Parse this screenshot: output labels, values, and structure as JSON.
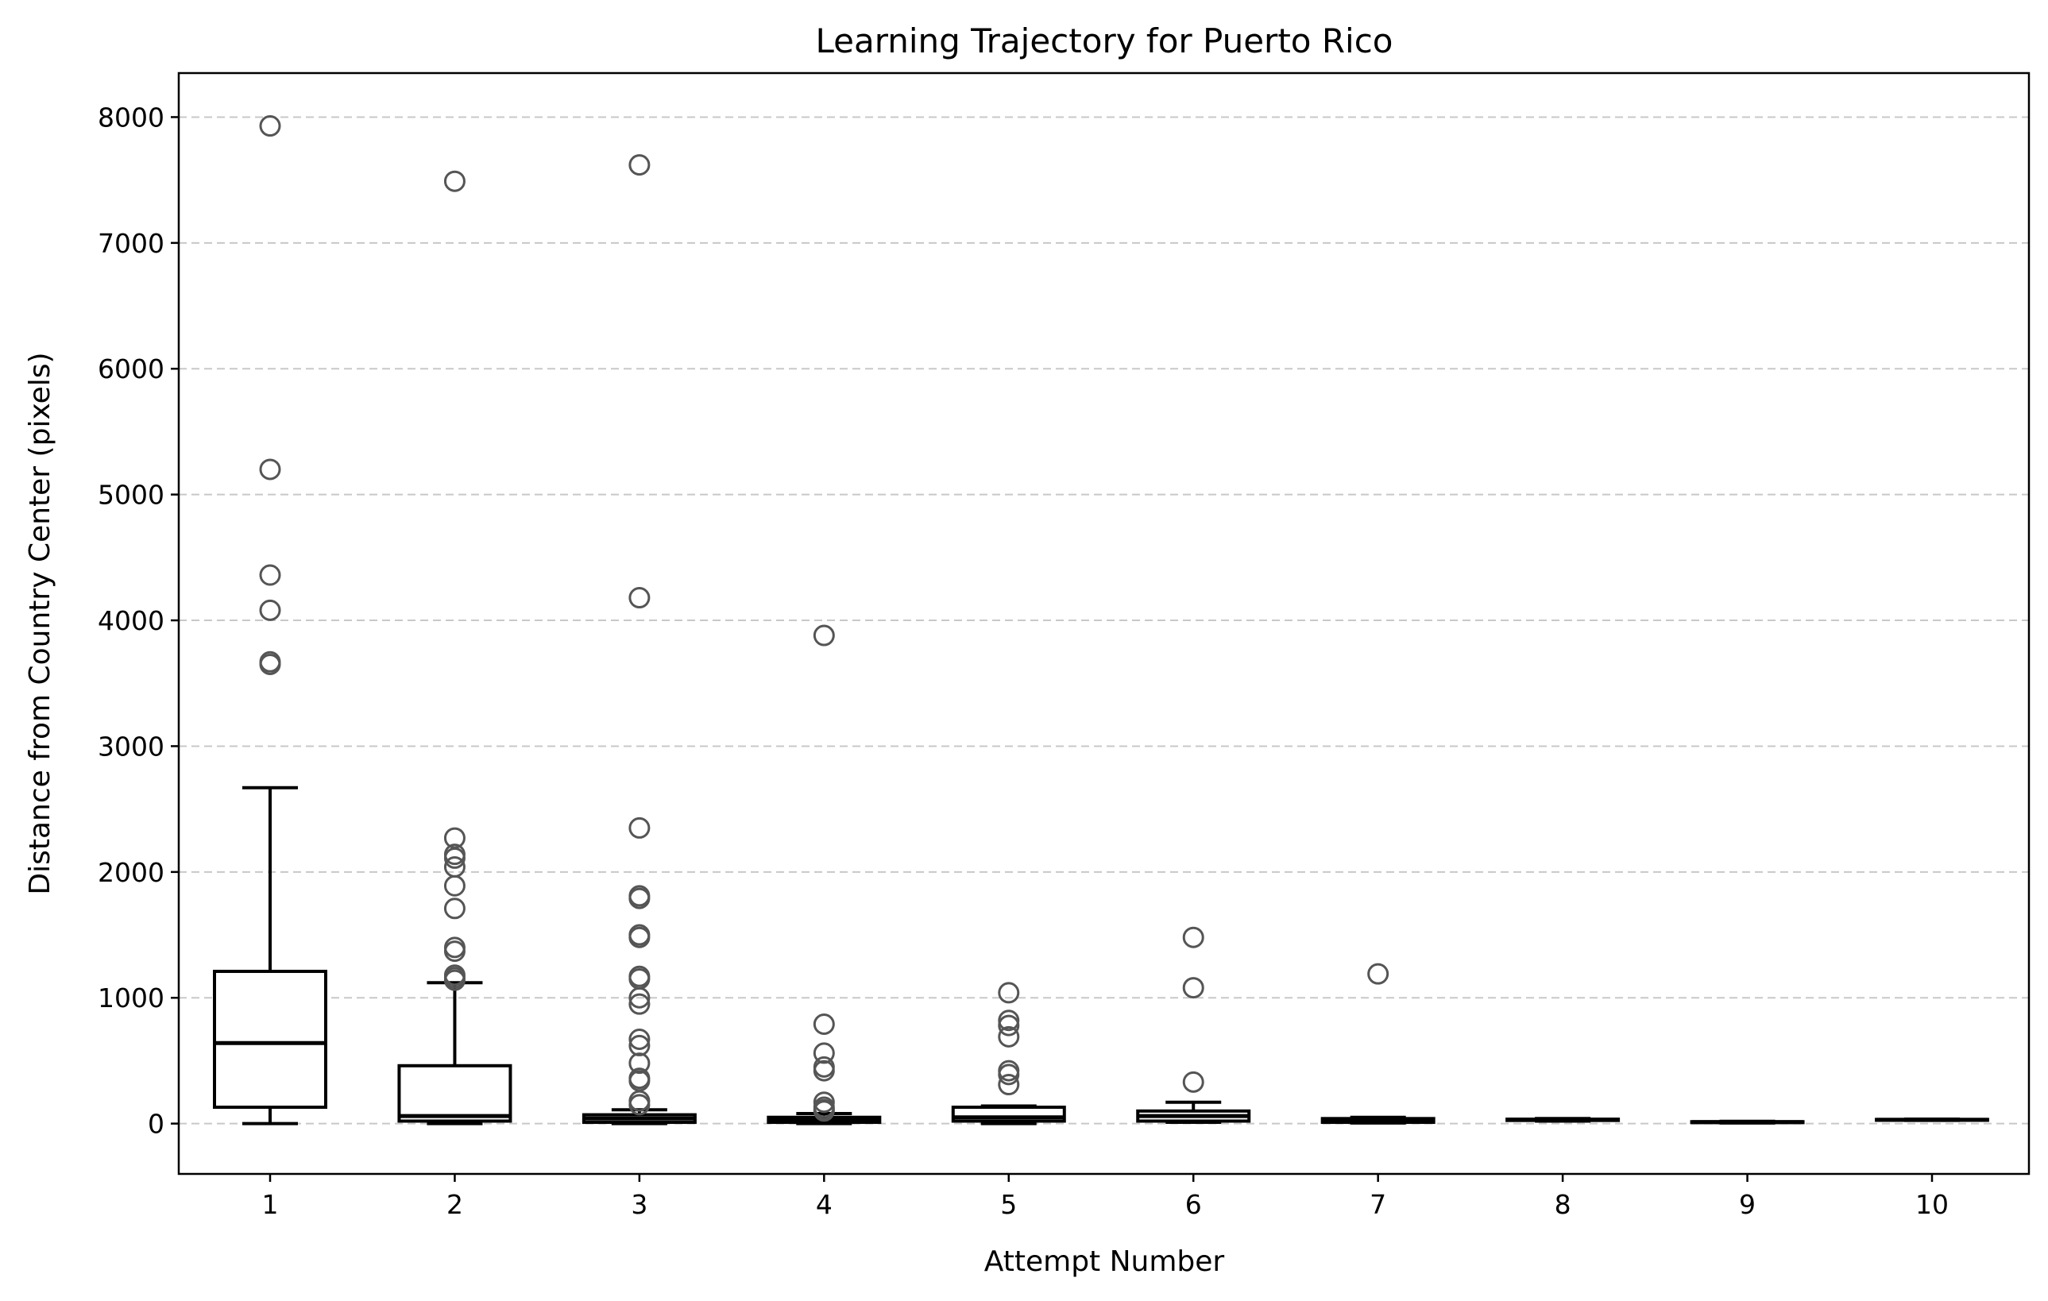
{
  "chart_data": {
    "type": "boxplot",
    "title": "Learning Trajectory for Puerto Rico",
    "xlabel": "Attempt Number",
    "ylabel": "Distance from Country Center (pixels)",
    "ylim": [
      -400,
      8350
    ],
    "yticks": [
      0,
      1000,
      2000,
      3000,
      4000,
      5000,
      6000,
      7000,
      8000
    ],
    "grid": "y-dashed",
    "categories": [
      "1",
      "2",
      "3",
      "4",
      "5",
      "6",
      "7",
      "8",
      "9",
      "10"
    ],
    "boxes": [
      {
        "category": "1",
        "whisker_low": 0,
        "q1": 130,
        "median": 640,
        "q3": 1210,
        "whisker_high": 2670,
        "fliers": [
          7930,
          5200,
          4360,
          4080,
          3670,
          3650
        ]
      },
      {
        "category": "2",
        "whisker_low": 0,
        "q1": 20,
        "median": 60,
        "q3": 460,
        "whisker_high": 1120,
        "fliers": [
          7490,
          2270,
          2140,
          2110,
          2040,
          1890,
          1710,
          1400,
          1370,
          1180,
          1160,
          1140
        ]
      },
      {
        "category": "3",
        "whisker_low": 0,
        "q1": 10,
        "median": 40,
        "q3": 70,
        "whisker_high": 110,
        "fliers": [
          7620,
          4180,
          2350,
          1810,
          1790,
          1500,
          1480,
          1170,
          1150,
          1000,
          950,
          670,
          620,
          480,
          360,
          340,
          180,
          150
        ]
      },
      {
        "category": "4",
        "whisker_low": 0,
        "q1": 10,
        "median": 30,
        "q3": 50,
        "whisker_high": 80,
        "fliers": [
          3880,
          790,
          560,
          450,
          420,
          170,
          130,
          110,
          100
        ]
      },
      {
        "category": "5",
        "whisker_low": 0,
        "q1": 20,
        "median": 50,
        "q3": 130,
        "whisker_high": 140,
        "fliers": [
          1040,
          820,
          780,
          690,
          420,
          390,
          310
        ]
      },
      {
        "category": "6",
        "whisker_low": 10,
        "q1": 20,
        "median": 60,
        "q3": 100,
        "whisker_high": 170,
        "fliers": [
          1480,
          1080,
          330
        ]
      },
      {
        "category": "7",
        "whisker_low": 5,
        "q1": 10,
        "median": 25,
        "q3": 40,
        "whisker_high": 50,
        "fliers": [
          1190
        ]
      },
      {
        "category": "8",
        "whisker_low": 20,
        "q1": 25,
        "median": 30,
        "q3": 35,
        "whisker_high": 40,
        "fliers": []
      },
      {
        "category": "9",
        "whisker_low": 5,
        "q1": 8,
        "median": 12,
        "q3": 15,
        "whisker_high": 18,
        "fliers": []
      },
      {
        "category": "10",
        "whisker_low": 25,
        "q1": 28,
        "median": 30,
        "q3": 33,
        "whisker_high": 36,
        "fliers": []
      }
    ]
  }
}
